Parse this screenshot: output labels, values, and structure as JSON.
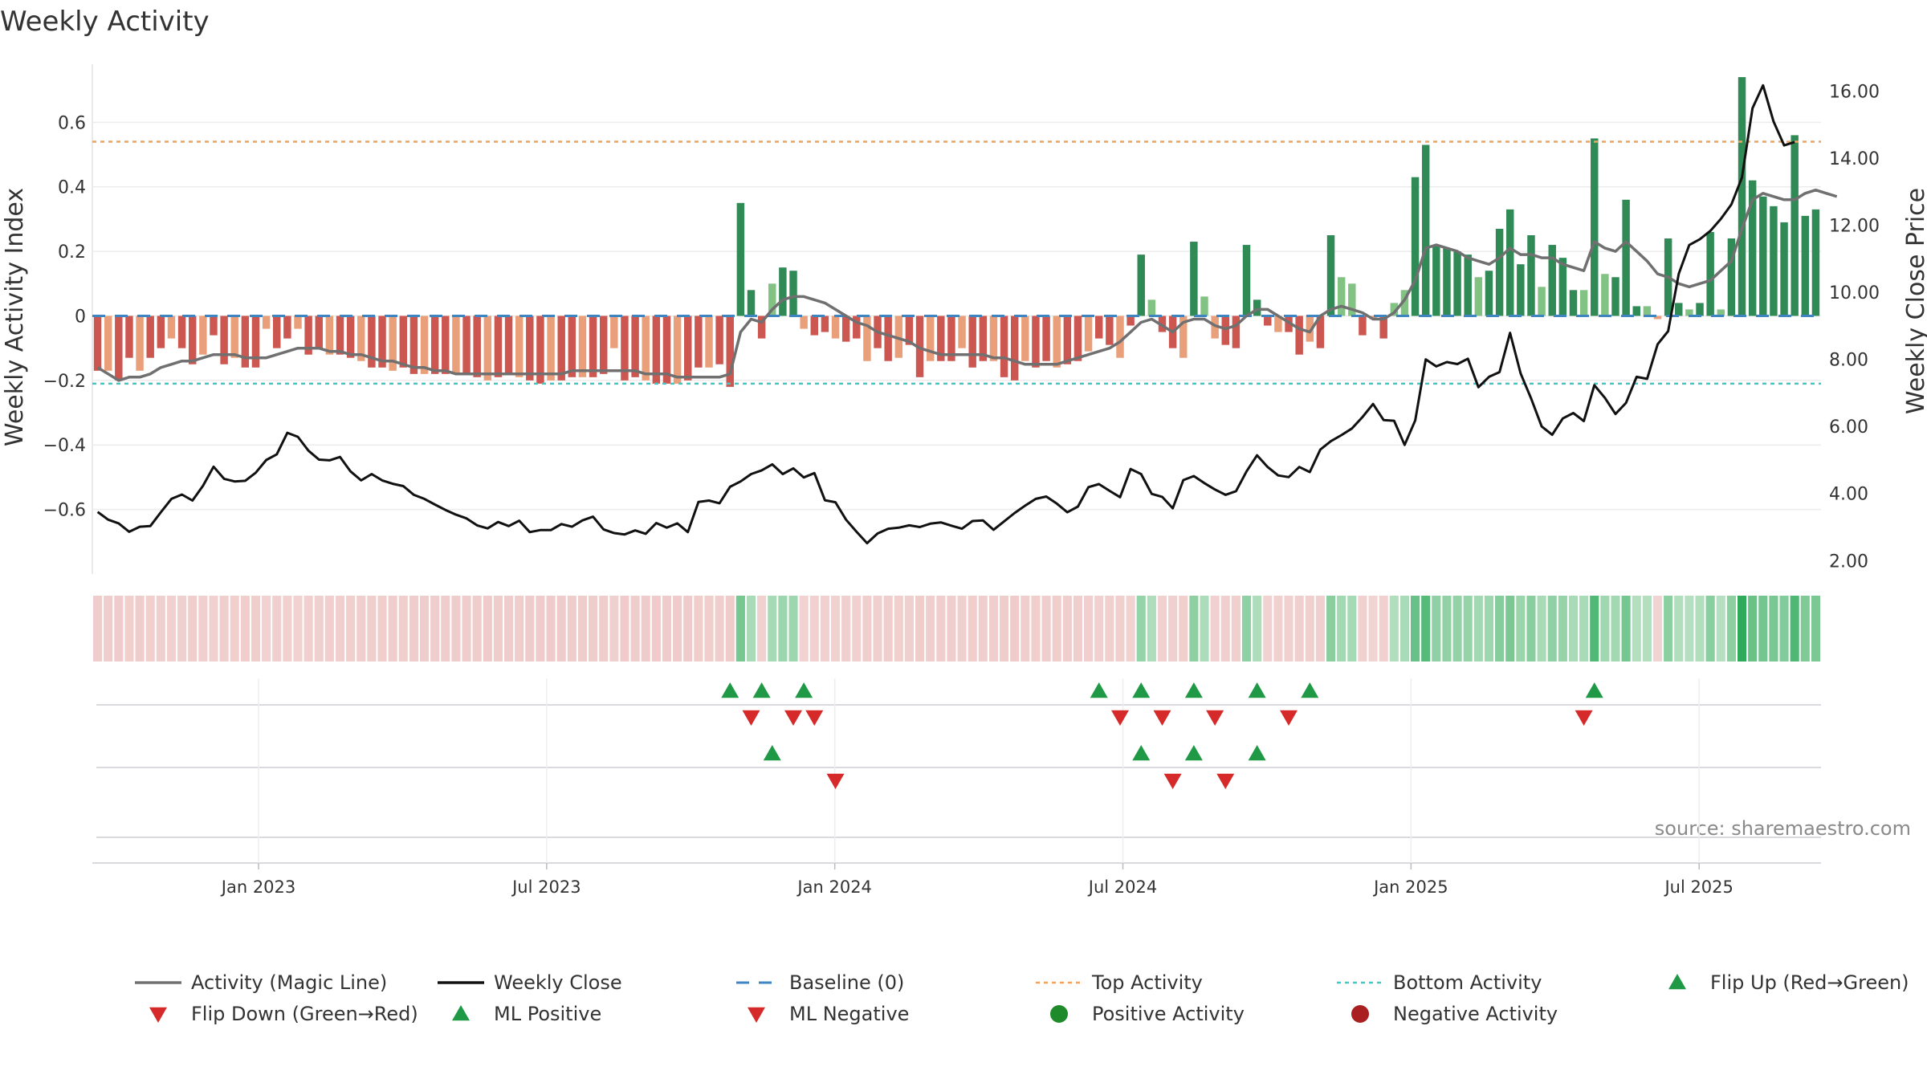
{
  "chart_data": {
    "type": "bar",
    "title": "Weekly Activity",
    "ylabel": "Weekly Activity Index",
    "y2label": "Weekly Close Price",
    "ylim": [
      -0.8,
      0.78
    ],
    "y2lim": [
      1.6,
      16.8
    ],
    "yticks": [
      "0.6",
      "0.4",
      "0.2",
      "0",
      "−0.2",
      "−0.4",
      "−0.6"
    ],
    "ytick_values": [
      0.6,
      0.4,
      0.2,
      0,
      -0.2,
      -0.4,
      -0.6
    ],
    "y2ticks": [
      "16.00",
      "14.00",
      "12.00",
      "10.00",
      "8.00",
      "6.00",
      "4.00",
      "2.00"
    ],
    "y2tick_values": [
      16,
      14,
      12,
      10,
      8,
      6,
      4,
      2
    ],
    "top_activity": 0.54,
    "bottom_activity": -0.21,
    "baseline": 0,
    "x_start_week": 0,
    "x_end_week": 156,
    "date_ticks": [
      {
        "label": "Jan 2023",
        "week": 15
      },
      {
        "label": "Jul 2023",
        "week": 41
      },
      {
        "label": "Jan 2024",
        "week": 67
      },
      {
        "label": "Jul 2024",
        "week": 93
      },
      {
        "label": "Jan 2025",
        "week": 119
      },
      {
        "label": "Jul 2025",
        "week": 145
      }
    ],
    "activity_bars": [
      [
        -0.17,
        -0.17,
        -0.2,
        -0.13,
        -0.17,
        -0.13,
        -0.1,
        -0.07,
        -0.1,
        -0.15,
        -0.12,
        -0.06,
        -0.15,
        -0.13,
        -0.16,
        -0.16,
        -0.04,
        -0.1,
        -0.07,
        -0.04,
        -0.12,
        -0.1,
        -0.12,
        -0.12,
        -0.13,
        -0.14,
        -0.16,
        -0.16,
        -0.17,
        -0.16,
        -0.18,
        -0.18,
        -0.18,
        -0.18,
        -0.18,
        -0.18,
        -0.19,
        -0.2,
        -0.19,
        -0.18,
        -0.19,
        -0.2,
        -0.21,
        -0.2,
        -0.2,
        -0.19,
        -0.19,
        -0.19,
        -0.18,
        -0.1,
        -0.2,
        -0.19,
        -0.2,
        -0.21,
        -0.21,
        -0.21,
        -0.2,
        -0.16,
        -0.16,
        -0.15,
        -0.22,
        0.35,
        0.08,
        -0.07,
        0.1,
        0.15,
        0.14,
        -0.04,
        -0.06,
        -0.05,
        -0.07,
        -0.08,
        -0.07,
        -0.14,
        -0.1,
        -0.14,
        -0.13,
        -0.09,
        -0.19,
        -0.14,
        -0.14,
        -0.14,
        -0.1,
        -0.16,
        -0.14,
        -0.14,
        -0.19,
        -0.2,
        -0.14,
        -0.16,
        -0.14,
        -0.16,
        -0.15,
        -0.14,
        -0.11,
        -0.07,
        -0.09,
        -0.13,
        -0.03,
        0.19,
        0.05,
        -0.05,
        -0.1,
        -0.13,
        0.23,
        0.06,
        -0.07,
        -0.09,
        -0.1,
        0.22,
        0.05,
        -0.03,
        -0.05,
        -0.05,
        -0.12,
        -0.08,
        -0.1,
        0.25,
        0.12,
        0.1,
        -0.06,
        -0.01,
        -0.07,
        0.04,
        0.08,
        0.43,
        0.53,
        0.22,
        0.21,
        0.2,
        0.19,
        0.12,
        0.14,
        0.27,
        0.33,
        0.16,
        0.25,
        0.09,
        0.22,
        0.18,
        0.08,
        0.08,
        0.55,
        0.13,
        0.12,
        0.36,
        0.03,
        0.03,
        -0.01,
        0.24,
        0.04,
        0.02,
        0.04,
        0.26,
        0.02,
        0.24,
        0.74,
        0.42,
        0.37,
        0.34,
        0.29,
        0.56,
        0.31,
        0.33
      ]
    ],
    "magic_line": [
      -0.16,
      -0.18,
      -0.2,
      -0.19,
      -0.19,
      -0.18,
      -0.16,
      -0.15,
      -0.14,
      -0.14,
      -0.13,
      -0.12,
      -0.12,
      -0.12,
      -0.13,
      -0.13,
      -0.13,
      -0.12,
      -0.11,
      -0.1,
      -0.1,
      -0.1,
      -0.11,
      -0.11,
      -0.12,
      -0.12,
      -0.13,
      -0.14,
      -0.14,
      -0.15,
      -0.16,
      -0.16,
      -0.17,
      -0.17,
      -0.18,
      -0.18,
      -0.18,
      -0.18,
      -0.18,
      -0.18,
      -0.18,
      -0.18,
      -0.18,
      -0.18,
      -0.18,
      -0.17,
      -0.17,
      -0.17,
      -0.17,
      -0.17,
      -0.17,
      -0.17,
      -0.18,
      -0.18,
      -0.18,
      -0.19,
      -0.19,
      -0.19,
      -0.19,
      -0.19,
      -0.18,
      -0.05,
      -0.01,
      -0.02,
      0.02,
      0.05,
      0.06,
      0.06,
      0.05,
      0.04,
      0.02,
      0.0,
      -0.02,
      -0.03,
      -0.05,
      -0.06,
      -0.07,
      -0.08,
      -0.1,
      -0.11,
      -0.12,
      -0.12,
      -0.12,
      -0.12,
      -0.12,
      -0.13,
      -0.13,
      -0.14,
      -0.15,
      -0.15,
      -0.15,
      -0.15,
      -0.14,
      -0.13,
      -0.12,
      -0.11,
      -0.1,
      -0.08,
      -0.05,
      -0.02,
      -0.01,
      -0.03,
      -0.05,
      -0.02,
      -0.01,
      -0.01,
      -0.03,
      -0.04,
      -0.03,
      0.0,
      0.02,
      0.02,
      0.0,
      -0.02,
      -0.04,
      -0.05,
      0.0,
      0.02,
      0.03,
      0.02,
      0.01,
      -0.01,
      -0.01,
      0.01,
      0.05,
      0.11,
      0.21,
      0.22,
      0.21,
      0.2,
      0.18,
      0.17,
      0.16,
      0.18,
      0.21,
      0.19,
      0.19,
      0.18,
      0.18,
      0.16,
      0.15,
      0.14,
      0.23,
      0.21,
      0.2,
      0.23,
      0.2,
      0.17,
      0.13,
      0.12,
      0.1,
      0.09,
      0.1,
      0.11,
      0.14,
      0.17,
      0.27,
      0.36,
      0.38,
      0.37,
      0.36,
      0.36,
      0.38,
      0.39,
      0.38,
      0.37
    ],
    "weekly_close": [
      3.45,
      3.22,
      3.11,
      2.86,
      3.01,
      3.03,
      3.44,
      3.84,
      3.97,
      3.79,
      4.23,
      4.8,
      4.44,
      4.36,
      4.38,
      4.62,
      5.0,
      5.17,
      5.81,
      5.69,
      5.28,
      5.01,
      4.99,
      5.09,
      4.66,
      4.39,
      4.58,
      4.39,
      4.29,
      4.22,
      3.96,
      3.84,
      3.67,
      3.51,
      3.37,
      3.26,
      3.05,
      2.96,
      3.15,
      3.03,
      3.19,
      2.85,
      2.91,
      2.91,
      3.09,
      3.01,
      3.2,
      3.31,
      2.93,
      2.82,
      2.78,
      2.9,
      2.8,
      3.12,
      2.98,
      3.11,
      2.85,
      3.75,
      3.79,
      3.71,
      4.2,
      4.36,
      4.58,
      4.69,
      4.87,
      4.58,
      4.75,
      4.48,
      4.61,
      3.8,
      3.74,
      3.22,
      2.86,
      2.52,
      2.81,
      2.95,
      2.98,
      3.05,
      3.0,
      3.1,
      3.14,
      3.04,
      2.95,
      3.18,
      3.2,
      2.92,
      3.17,
      3.42,
      3.64,
      3.84,
      3.91,
      3.7,
      3.44,
      3.61,
      4.19,
      4.28,
      4.08,
      3.89,
      4.73,
      4.58,
      3.99,
      3.9,
      3.56,
      4.4,
      4.52,
      4.31,
      4.12,
      3.96,
      4.07,
      4.66,
      5.14,
      4.79,
      4.54,
      4.49,
      4.79,
      4.64,
      5.31,
      5.56,
      5.74,
      5.94,
      6.28,
      6.67,
      6.19,
      6.17,
      5.45,
      6.18,
      8.0,
      7.79,
      7.92,
      7.86,
      8.02,
      7.17,
      7.48,
      7.62,
      8.79,
      7.58,
      6.83,
      6.0,
      5.75,
      6.24,
      6.4,
      6.16,
      7.23,
      6.85,
      6.37,
      6.7,
      7.48,
      7.42,
      8.45,
      8.84,
      10.55,
      11.41,
      11.58,
      11.83,
      12.19,
      12.62,
      13.42,
      15.49,
      16.17,
      15.09,
      14.38,
      14.48
    ],
    "signal_rows": {
      "flip_up": [
        60,
        63,
        67,
        95,
        99,
        104,
        110,
        115,
        142
      ],
      "flip_down": [
        62,
        66,
        68,
        97,
        101,
        106,
        113,
        141
      ],
      "ml_positive": [
        64,
        99,
        104,
        110
      ],
      "ml_negative": [
        70,
        102,
        107
      ]
    },
    "legend": [
      {
        "label": "Activity (Magic Line)",
        "kind": "line",
        "color": "#707070"
      },
      {
        "label": "Weekly Close",
        "kind": "line",
        "color": "#111111"
      },
      {
        "label": "Baseline (0)",
        "kind": "dash",
        "color": "#3f85c2"
      },
      {
        "label": "Top Activity",
        "kind": "dot",
        "color": "#f0a35c"
      },
      {
        "label": "Bottom Activity",
        "kind": "dot",
        "color": "#3fc8c8"
      },
      {
        "label": "Flip Up (Red→Green)",
        "kind": "up",
        "color": "#1f9945"
      },
      {
        "label": "Flip Down (Green→Red)",
        "kind": "down",
        "color": "#d62a2a"
      },
      {
        "label": "ML Positive",
        "kind": "up",
        "color": "#1f9945"
      },
      {
        "label": "ML Negative",
        "kind": "down",
        "color": "#d62a2a"
      },
      {
        "label": "Positive Activity",
        "kind": "circle",
        "color": "#1f8a2a"
      },
      {
        "label": "Negative Activity",
        "kind": "circle",
        "color": "#aa1f1f"
      }
    ],
    "source": "source: sharemaestro.com"
  },
  "colors": {
    "strong_green": "#2f8a56",
    "light_green": "#82c283",
    "strong_red": "#cc5650",
    "light_red": "#ea9f7b",
    "magic_line": "#707070",
    "close_line": "#111111",
    "baseline": "#3f85c2",
    "top_activity": "#f0a35c",
    "bottom_activity": "#3fc8c8"
  }
}
